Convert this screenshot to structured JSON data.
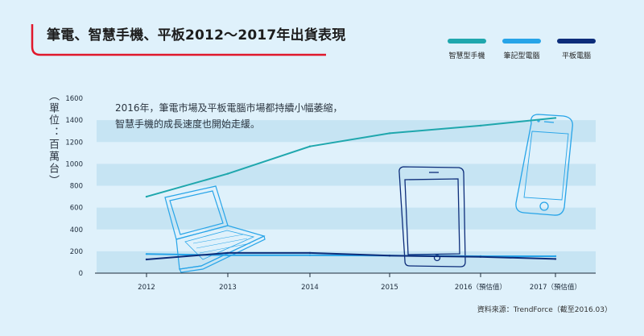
{
  "title": "筆電、智慧手機、平板2012～2017年出貨表現",
  "unit_label": "（單位：百萬台）",
  "annotation": "2016年，筆電市場及平板電腦市場都持續小幅萎縮，智慧手機的成長速度也開始走緩。",
  "source": "資料來源：TrendForce（截至2016.03）",
  "colors": {
    "background": "#dff1fb",
    "band": "#c6e4f3",
    "accent_red": "#e0182c",
    "smartphone": "#1fa7ad",
    "notebook": "#27a4e8",
    "tablet": "#0d2d7a",
    "axis": "#1c2a3a"
  },
  "icons": [
    "laptop-illustration",
    "tablet-illustration",
    "smartphone-illustration"
  ],
  "chart_data": {
    "type": "line",
    "title": "筆電、智慧手機、平板2012～2017年出貨表現",
    "xlabel": "",
    "ylabel": "（單位：百萬台）",
    "categories": [
      "2012",
      "2013",
      "2014",
      "2015",
      "2016（預估值）",
      "2017（預估值）"
    ],
    "ylim": [
      0,
      1600
    ],
    "yticks": [
      0,
      200,
      400,
      600,
      800,
      1000,
      1200,
      1400,
      1600
    ],
    "grid": "alternating horizontal bands",
    "legend_position": "top-right",
    "series": [
      {
        "name": "智慧型手機",
        "color": "#1fa7ad",
        "values": [
          700,
          910,
          1160,
          1280,
          1350,
          1420
        ]
      },
      {
        "name": "筆記型電腦",
        "color": "#27a4e8",
        "values": [
          175,
          164,
          164,
          160,
          155,
          155
        ]
      },
      {
        "name": "平板電腦",
        "color": "#0d2d7a",
        "values": [
          125,
          185,
          185,
          160,
          150,
          130
        ]
      }
    ]
  }
}
